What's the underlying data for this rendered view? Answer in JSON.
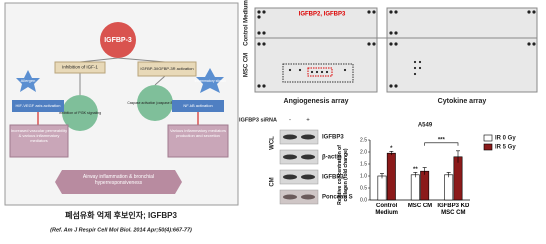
{
  "diagram": {
    "hub": "IGFBP-3",
    "left_path": "Inhibition of IGF-1",
    "right_path": "IGFBP-3/IGFBP-3R activation",
    "left_trigger": "Allergen",
    "right_trigger": "Inflammatory stimuli",
    "left_mechanism": "Inhibition of PI3K signaling",
    "right_mechanism": "Caspase activation (caspase 8 and 7)",
    "left_activation": "HIF-VEGF axis activation",
    "right_activation": "NF-kB activation",
    "left_effect": "Increased vascular permeability & various inflammatory mediators",
    "right_effect": "Various inflammatory mediators production and secretion",
    "outcome": "Airway inflammation & bronchial hyperresponsiveness",
    "caption": "폐섬유화 억제 후보인자; IGFBP3",
    "reference": "(Ref. Am J Respir Cell Mol Biol. 2014 Apr;50(4):667-77)"
  },
  "arrays": {
    "highlight": "IGFBP2, IGFBP3",
    "rows": [
      "Control Medium",
      "MSC CM"
    ],
    "captions": [
      "Angiogenesis array",
      "Cytokine array"
    ]
  },
  "blot": {
    "treatment": "IGFBP3 siRNA",
    "lanes": [
      "-",
      "+"
    ],
    "groups": [
      "WCL",
      "CM"
    ],
    "bands": [
      "IGFBP3",
      "β-actin",
      "IGFBP3",
      "Ponceau S"
    ]
  },
  "chart_data": {
    "type": "bar",
    "title": "A549",
    "y_label": "Relative concentration of collagen (fold change)",
    "categories": [
      "Control Medium",
      "MSC CM",
      "IGFBP3 KD MSC CM"
    ],
    "series": [
      {
        "name": "IR 0 Gy",
        "color": "#ffffff",
        "values": [
          1.0,
          1.05,
          1.05
        ],
        "errors": [
          0.1,
          0.1,
          0.1
        ]
      },
      {
        "name": "IR 5 Gy",
        "color": "#8b1a1a",
        "values": [
          1.95,
          1.2,
          1.8
        ],
        "errors": [
          0.08,
          0.15,
          0.25
        ]
      }
    ],
    "ylim": [
      0,
      2.5
    ],
    "yticks": [
      {
        "value": 0,
        "label": "0.0"
      },
      {
        "value": 0.5,
        "label": "0.5"
      },
      {
        "value": 1,
        "label": "1.0"
      },
      {
        "value": 1.5,
        "label": "1.5"
      },
      {
        "value": 2,
        "label": "2.0"
      },
      {
        "value": 2.5,
        "label": "2.5"
      }
    ],
    "annotations": [
      "*",
      "**",
      "***"
    ],
    "legend": "right"
  }
}
